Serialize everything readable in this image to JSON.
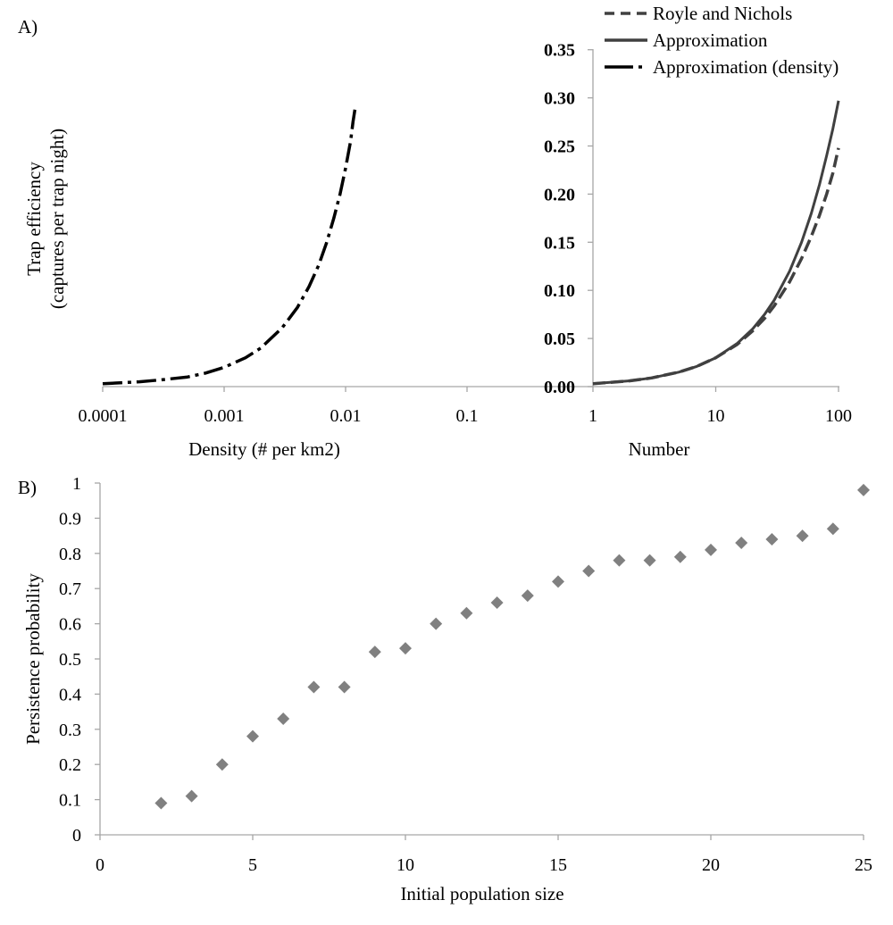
{
  "panel_a": {
    "label": "A)"
  },
  "panel_b": {
    "label": "B)"
  },
  "colors": {
    "axis": "#a6a6a6",
    "series_line": "#404040",
    "density_line": "#000000",
    "marker": "#808080"
  },
  "chart_data": [
    {
      "type": "line",
      "scale": "log-x",
      "xlabel": "Density (# per km2)",
      "ylabel": [
        "Trap efficiency",
        "(captures per trap night)"
      ],
      "xticks": [
        "0.0001",
        "0.001",
        "0.01",
        "0.1"
      ],
      "xlim": [
        0.0001,
        0.316
      ],
      "ylim": [
        0,
        0.35
      ],
      "series": [
        {
          "name": "Approximation (density)",
          "style": "dash-dot",
          "x": [
            0.0001,
            0.0002,
            0.0003,
            0.0005,
            0.0007,
            0.001,
            0.0015,
            0.002,
            0.003,
            0.004,
            0.005,
            0.006,
            0.007,
            0.008,
            0.009,
            0.01,
            0.011,
            0.0115,
            0.012
          ],
          "y": [
            0.003,
            0.005,
            0.007,
            0.01,
            0.014,
            0.02,
            0.03,
            0.04,
            0.061,
            0.082,
            0.104,
            0.126,
            0.15,
            0.175,
            0.2,
            0.227,
            0.255,
            0.275,
            0.29
          ]
        }
      ]
    },
    {
      "type": "line",
      "scale": "log-x",
      "xlabel": "Number",
      "xticks": [
        "1",
        "10",
        "100"
      ],
      "yticks": [
        "0.35",
        "0.30",
        "0.25",
        "0.20",
        "0.15",
        "0.10",
        "0.05",
        "0.00"
      ],
      "xlim": [
        1,
        100
      ],
      "ylim": [
        0,
        0.35
      ],
      "legend_position": "top-right",
      "series": [
        {
          "name": "Royle and Nichols",
          "style": "dashed",
          "x": [
            1,
            2,
            3,
            5,
            7,
            10,
            15,
            20,
            25,
            30,
            40,
            50,
            60,
            70,
            80,
            90,
            100
          ],
          "y": [
            0.003,
            0.006,
            0.009,
            0.015,
            0.021,
            0.03,
            0.044,
            0.058,
            0.071,
            0.084,
            0.109,
            0.133,
            0.156,
            0.178,
            0.2,
            0.222,
            0.248
          ]
        },
        {
          "name": "Approximation",
          "style": "solid",
          "x": [
            1,
            2,
            3,
            5,
            7,
            10,
            15,
            20,
            25,
            30,
            40,
            50,
            60,
            70,
            80,
            90,
            100
          ],
          "y": [
            0.003,
            0.006,
            0.009,
            0.015,
            0.021,
            0.03,
            0.045,
            0.06,
            0.075,
            0.09,
            0.12,
            0.15,
            0.18,
            0.21,
            0.24,
            0.268,
            0.297
          ]
        }
      ]
    },
    {
      "type": "scatter",
      "xlabel": "Initial population size",
      "ylabel": "Persistence probability",
      "xlim": [
        0,
        25
      ],
      "ylim": [
        0,
        1
      ],
      "xticks": [
        "0",
        "5",
        "10",
        "15",
        "20",
        "25"
      ],
      "yticks": [
        "0",
        "0.1",
        "0.2",
        "0.3",
        "0.4",
        "0.5",
        "0.6",
        "0.7",
        "0.8",
        "0.9",
        "1"
      ],
      "x": [
        2,
        3,
        4,
        5,
        6,
        7,
        8,
        9,
        10,
        11,
        12,
        13,
        14,
        15,
        16,
        17,
        18,
        19,
        20,
        21,
        22,
        23,
        24,
        25
      ],
      "y": [
        0.09,
        0.11,
        0.2,
        0.28,
        0.33,
        0.42,
        0.42,
        0.52,
        0.53,
        0.6,
        0.63,
        0.66,
        0.68,
        0.72,
        0.75,
        0.78,
        0.78,
        0.79,
        0.81,
        0.83,
        0.84,
        0.85,
        0.87,
        0.98
      ]
    }
  ]
}
